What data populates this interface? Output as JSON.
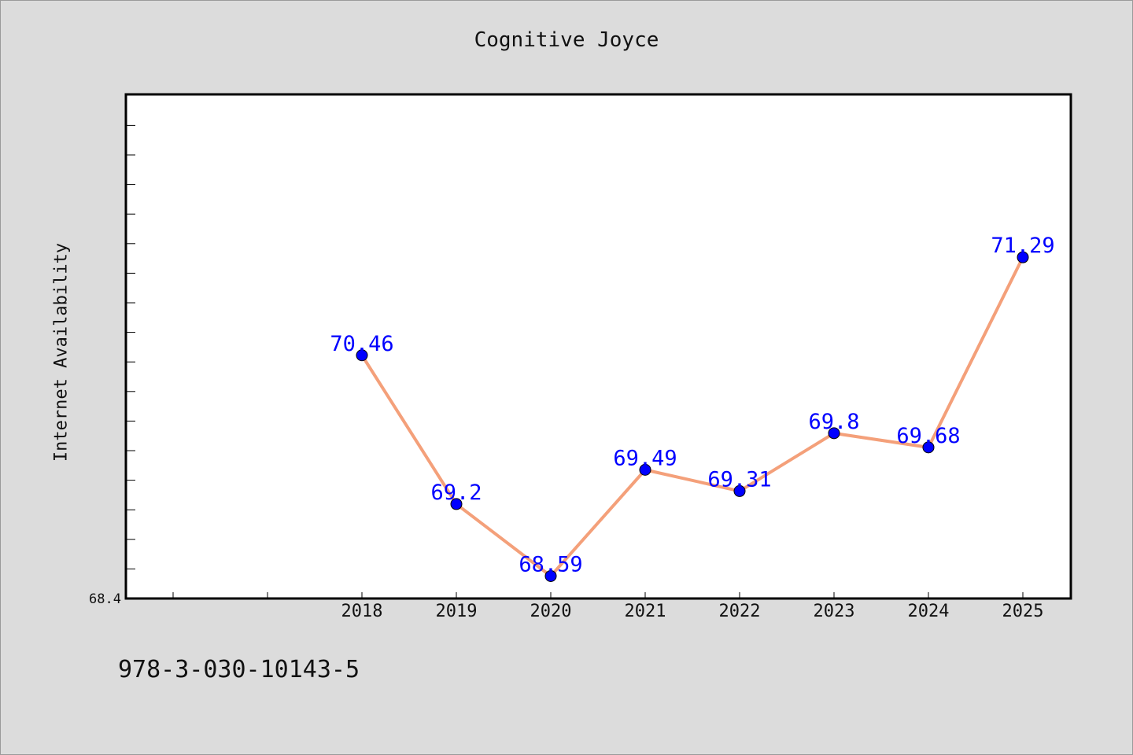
{
  "chart_data": {
    "type": "line",
    "title": "Cognitive Joyce",
    "xlabel": "",
    "ylabel": "Internet Availability",
    "ylim": [
      68.4,
      72.67
    ],
    "y_tick_labels": [
      "68.4"
    ],
    "x": [
      "2018",
      "2019",
      "2020",
      "2021",
      "2022",
      "2023",
      "2024",
      "2025"
    ],
    "series": [
      {
        "values": [
          70.46,
          69.2,
          68.59,
          69.49,
          69.31,
          69.8,
          69.68,
          71.29
        ],
        "data_labels": [
          "70.46",
          "69.2",
          "68.59",
          "69.49",
          "69.31",
          "69.8",
          "69.68",
          "71.29"
        ]
      }
    ],
    "grid": false,
    "colors": {
      "line": "#f4a07a",
      "marker": "#0000ff",
      "data_label": "#0000ff",
      "background": "#dcdcdc",
      "plot_background": "#ffffff"
    }
  },
  "footer": {
    "isbn": "978-3-030-10143-5"
  }
}
